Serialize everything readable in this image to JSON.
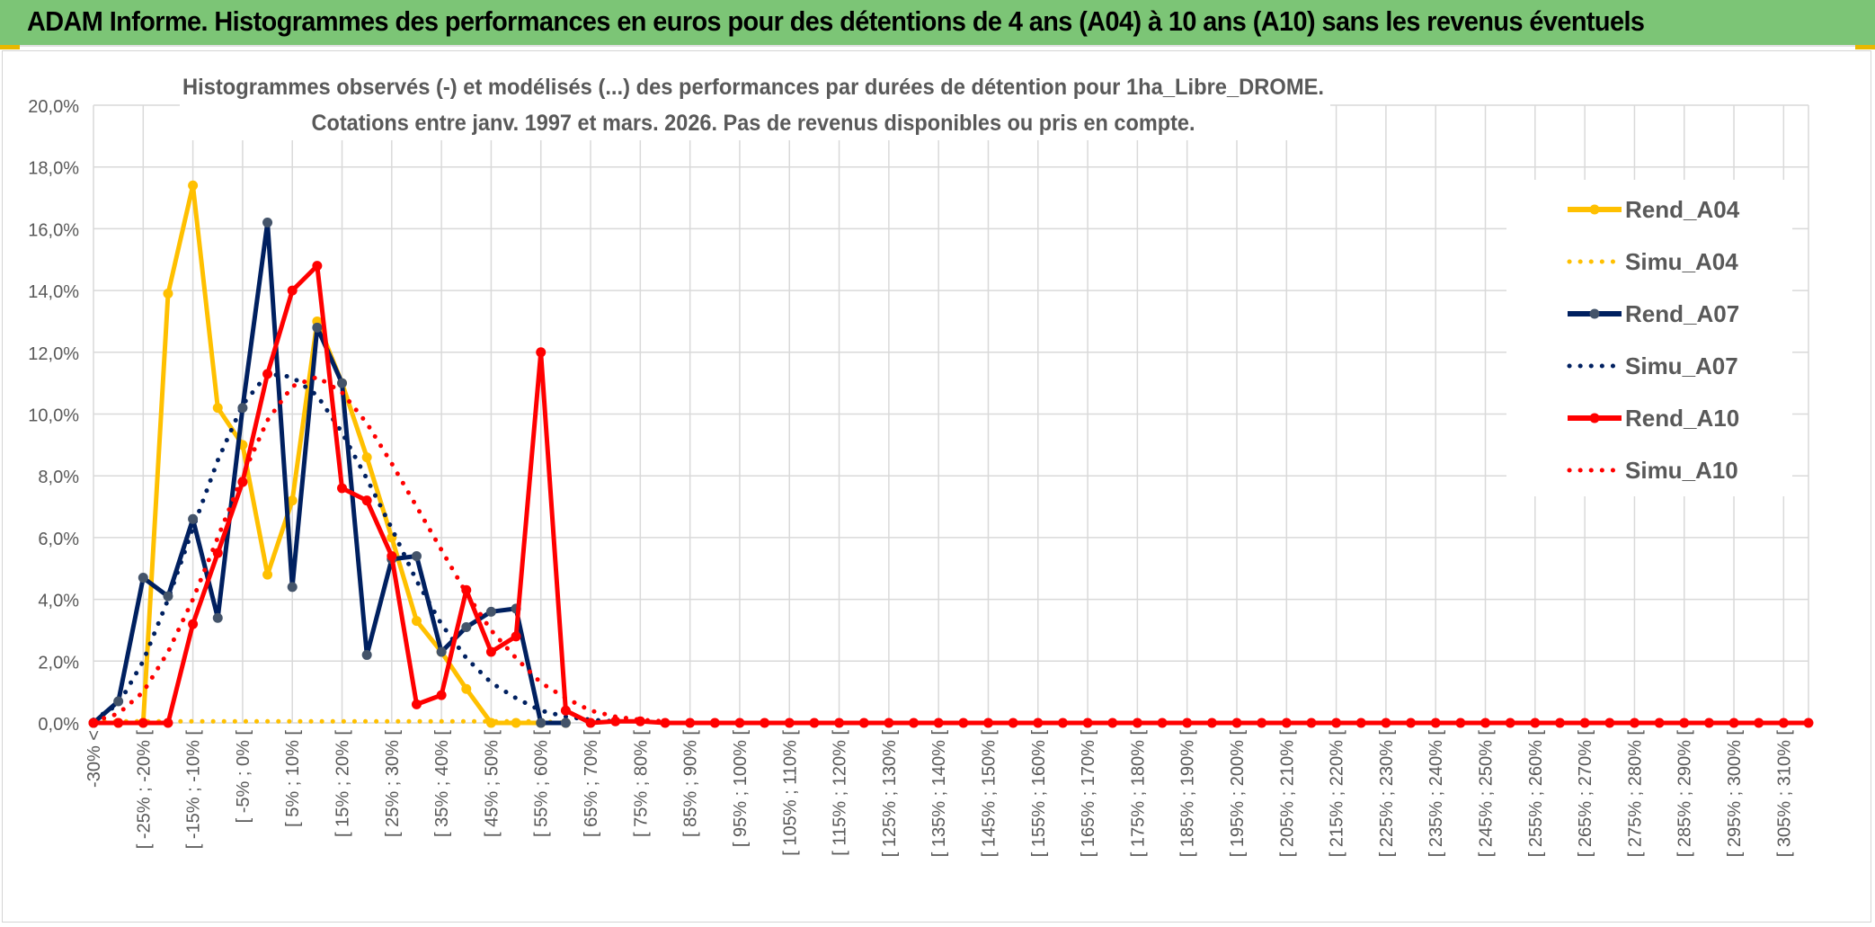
{
  "banner": {
    "title": "ADAM Informe. Histogrammes des performances en euros pour des détentions de 4 ans (A04) à 10 ans (A10) sans les revenus éventuels"
  },
  "colors": {
    "banner_bg": "#7cc576",
    "rend_a04": "#ffc000",
    "simu_a04": "#ffc000",
    "rend_a07": "#002060",
    "simu_a07": "#002060",
    "rend_a10": "#ff0000",
    "simu_a10": "#ff0000",
    "grid": "#d9d9d9",
    "text": "#595959"
  },
  "chart_data": {
    "type": "line",
    "title": "Histogrammes observés (-) et modélisés (...) des performances par durées de détention pour 1ha_Libre_DROME.",
    "subtitle": "Cotations entre janv. 1997 et mars. 2026. Pas de revenus disponibles ou pris en compte.",
    "xlabel": "",
    "ylabel": "",
    "ylim": [
      0,
      20
    ],
    "y_ticks": [
      "0,0%",
      "2,0%",
      "4,0%",
      "6,0%",
      "8,0%",
      "10,0%",
      "12,0%",
      "14,0%",
      "16,0%",
      "18,0%",
      "20,0%"
    ],
    "grid": true,
    "legend_position": "right",
    "x_tick_labels": [
      "-30% <",
      "[ -25% ; -20% [",
      "[ -15% ; -10% [",
      "[ -5% ; 0% [",
      "[ 5% ; 10% [",
      "[ 15% ; 20% [",
      "[ 25% ; 30% [",
      "[ 35% ; 40% [",
      "[ 45% ; 50% [",
      "[ 55% ; 60% [",
      "[ 65% ; 70% [",
      "[ 75% ; 80% [",
      "[ 85% ; 90% [",
      "[ 95% ; 100% [",
      "[ 105% ; 110% [",
      "[ 115% ; 120% [",
      "[ 125% ; 130% [",
      "[ 135% ; 140% [",
      "[ 145% ; 150% [",
      "[ 155% ; 160% [",
      "[ 165% ; 170% [",
      "[ 175% ; 180% [",
      "[ 185% ; 190% [",
      "[ 195% ; 200% [",
      "[ 205% ; 210% [",
      "[ 215% ; 220% [",
      "[ 225% ; 230% [",
      "[ 235% ; 240% [",
      "[ 245% ; 250% [",
      "[ 255% ; 260% [",
      "[ 265% ; 270% [",
      "[ 275% ; 280% [",
      "[ 285% ; 290% [",
      "[ 295% ; 300% [",
      "[ 305% ; 310% ["
    ],
    "series": [
      {
        "name": "Rend_A04",
        "style": "solid",
        "markers": true,
        "values": [
          0,
          0,
          0,
          13.9,
          17.4,
          10.2,
          9.0,
          4.8,
          7.2,
          13.0,
          11.0,
          8.6,
          6.0,
          3.3,
          2.3,
          1.1,
          0,
          0,
          0,
          0
        ]
      },
      {
        "name": "Simu_A04",
        "style": "dotted",
        "markers": false,
        "values": [
          0.05,
          0.05,
          0.05,
          0.05,
          0.05,
          0.05,
          0.05,
          0.05,
          0.05,
          0.05,
          0.05,
          0.05,
          0.05,
          0.05,
          0.05,
          0.05,
          0.05,
          0.05,
          0.05,
          0
        ]
      },
      {
        "name": "Rend_A07",
        "style": "solid",
        "markers": true,
        "values": [
          0,
          0.7,
          4.7,
          4.1,
          6.6,
          3.4,
          10.2,
          16.2,
          4.4,
          12.8,
          11.0,
          2.2,
          5.3,
          5.4,
          2.3,
          3.1,
          3.6,
          3.7,
          0,
          0
        ]
      },
      {
        "name": "Simu_A07",
        "style": "dotted",
        "markers": false,
        "values": [
          0.1,
          0.6,
          2.0,
          4.0,
          6.3,
          8.5,
          10.3,
          11.3,
          11.2,
          10.6,
          9.4,
          7.9,
          6.3,
          4.6,
          3.2,
          2.1,
          1.3,
          0.8,
          0.4,
          0.2,
          0.1,
          0.05
        ]
      },
      {
        "name": "Rend_A10",
        "style": "solid",
        "markers": true,
        "values": [
          0,
          0,
          0,
          0,
          3.2,
          5.5,
          7.8,
          11.3,
          14.0,
          14.8,
          7.6,
          7.2,
          5.4,
          0.6,
          0.9,
          4.3,
          2.3,
          2.8,
          12.0,
          0.4,
          0,
          0.05,
          0.05,
          0,
          0,
          0,
          0,
          0,
          0,
          0,
          0,
          0,
          0,
          0,
          0,
          0,
          0,
          0,
          0,
          0,
          0,
          0,
          0,
          0,
          0,
          0,
          0,
          0,
          0,
          0,
          0,
          0,
          0,
          0,
          0,
          0,
          0,
          0,
          0,
          0,
          0,
          0,
          0,
          0,
          0,
          0,
          0,
          0,
          0,
          0
        ]
      },
      {
        "name": "Simu_A10",
        "style": "dotted",
        "markers": false,
        "values": [
          0.05,
          0.3,
          1.0,
          2.3,
          4.0,
          6.0,
          8.0,
          9.8,
          10.9,
          11.2,
          10.7,
          9.7,
          8.4,
          7.0,
          5.6,
          4.2,
          3.0,
          2.1,
          1.3,
          0.8,
          0.4,
          0.2,
          0.1,
          0.05
        ]
      }
    ]
  }
}
